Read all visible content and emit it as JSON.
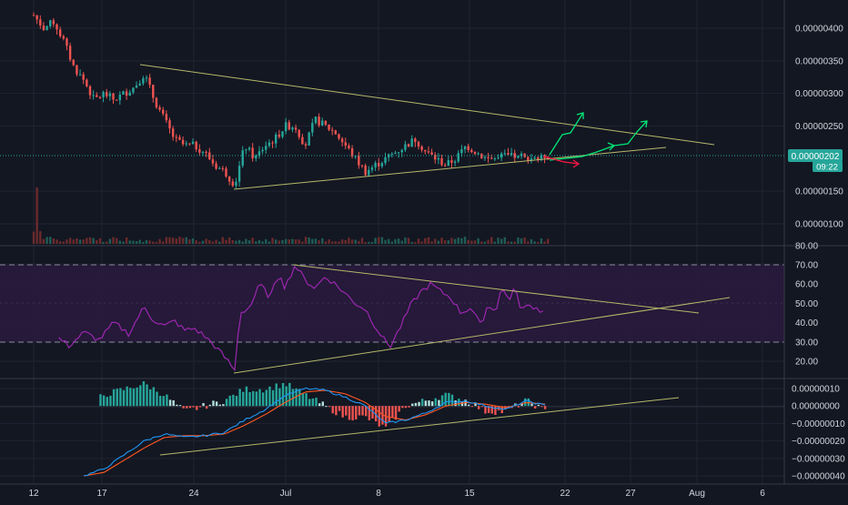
{
  "theme": {
    "background": "#131722",
    "grid": "#1f2433",
    "axis_text": "#d1d4dc",
    "up": "#26a69a",
    "down": "#ef5350",
    "trendline": "#b5b86a",
    "rsi_line": "#9c27b0",
    "rsi_band": "#2a1a3d",
    "macd_line": "#2196f3",
    "signal_line": "#ff5722",
    "hist_up": "#b2dfdb",
    "hist_up_strong": "#26a69a",
    "hist_down": "#ef5350",
    "arrow_green": "#00e676",
    "arrow_red": "#ff1744",
    "price_label_bg": "#26a69a",
    "price_line": "#26a69a"
  },
  "price_axis": {
    "ticks": [
      "0.00000400",
      "0.00000350",
      "0.00000300",
      "0.00000250",
      "0.00000150",
      "0.00000100"
    ],
    "last_price": "0.00000202",
    "countdown": "09:22"
  },
  "rsi_axis": {
    "ticks": [
      "80.00",
      "70.00",
      "60.00",
      "50.00",
      "40.00",
      "30.00",
      "20.00"
    ]
  },
  "macd_axis": {
    "ticks": [
      "0.00000010",
      "0.00000000",
      "−0.00000010",
      "−0.00000020",
      "−0.00000030",
      "−0.00000040"
    ]
  },
  "time_axis": {
    "labels": [
      "12",
      "17",
      "24",
      "Jul",
      "8",
      "15",
      "22",
      "27",
      "Aug",
      "6"
    ]
  },
  "chart_data": [
    {
      "type": "line",
      "name": "price",
      "x": [
        "Jun 12",
        "Jun 14",
        "Jun 17",
        "Jun 19",
        "Jun 20",
        "Jun 24",
        "Jun 27",
        "Jul 1",
        "Jul 3",
        "Jul 5",
        "Jul 8",
        "Jul 10",
        "Jul 13",
        "Jul 15",
        "Jul 17",
        "Jul 19",
        "Jul 21"
      ],
      "values": [
        4.1e-06,
        3.9e-06,
        3e-06,
        3.1e-06,
        3.3e-06,
        2.2e-06,
        1.6e-06,
        2.5e-06,
        2.9e-06,
        2.5e-06,
        2e-06,
        1.8e-06,
        2.3e-06,
        2e-06,
        2.2e-06,
        2e-06,
        2.02e-06
      ],
      "ylim": [
        8e-07,
        4.25e-06
      ]
    },
    {
      "type": "line",
      "name": "rsi",
      "x": [
        "Jun 12",
        "Jun 17",
        "Jun 20",
        "Jun 24",
        "Jun 27",
        "Jul 1",
        "Jul 3",
        "Jul 5",
        "Jul 8",
        "Jul 10",
        "Jul 13",
        "Jul 15",
        "Jul 17",
        "Jul 19",
        "Jul 21"
      ],
      "values": [
        32,
        36,
        48,
        36,
        15,
        68,
        62,
        55,
        45,
        28,
        60,
        45,
        58,
        48,
        48
      ],
      "ylim": [
        10,
        84
      ]
    },
    {
      "type": "line",
      "name": "macd",
      "x": [
        "Jun 14",
        "Jun 17",
        "Jun 20",
        "Jun 24",
        "Jun 27",
        "Jul 1",
        "Jul 3",
        "Jul 8",
        "Jul 10",
        "Jul 13",
        "Jul 17",
        "Jul 21"
      ],
      "values": [
        -3.8e-07,
        -3e-07,
        -2e-07,
        -1.8e-07,
        -1.6e-07,
        1e-07,
        1.2e-07,
        -4e-08,
        -1.2e-07,
        -2e-08,
        3e-08,
        0.0
      ],
      "ylim": [
        -4.2e-07,
        1.2e-07
      ]
    }
  ]
}
